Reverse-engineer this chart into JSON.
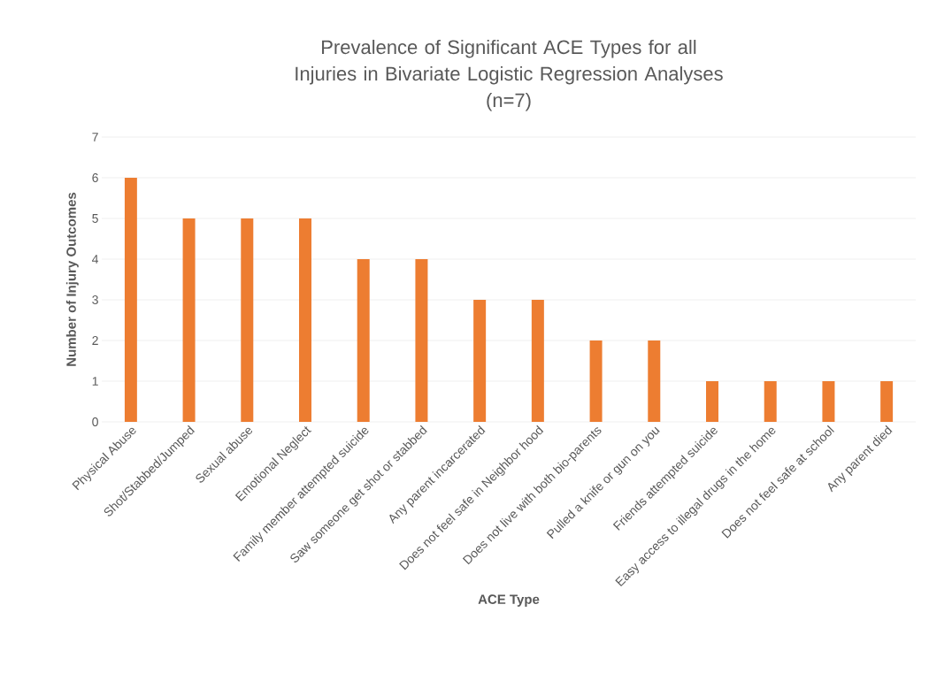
{
  "chart_data": {
    "type": "bar",
    "title": "Prevalence of Significant ACE Types for all Injuries in Bivariate Logistic Regression Analyses",
    "subtitle": "(n=7)",
    "xlabel": "ACE Type",
    "ylabel": "Number of Injury Outcomes",
    "categories": [
      "Physical Abuse",
      "Shot/Stabbed/Jumped",
      "Sexual abuse",
      "Emotional Neglect",
      "Family member attempted suicide",
      "Saw someone get shot or stabbed",
      "Any parent incarcerated",
      "Does not feel safe in Neighbor hood",
      "Does not live with both bio-parents",
      "Pulled a knife or gun on you",
      "Friends attempted suicide",
      "Easy access to illegal drugs in the home",
      "Does not feel safe at school",
      "Any parent died"
    ],
    "values": [
      6,
      5,
      5,
      5,
      4,
      4,
      3,
      3,
      2,
      2,
      1,
      1,
      1,
      1
    ],
    "color": "#ed7d31",
    "ylim": [
      0,
      7
    ],
    "yticks": [
      0,
      1,
      2,
      3,
      4,
      5,
      6,
      7
    ],
    "grid": "y"
  }
}
